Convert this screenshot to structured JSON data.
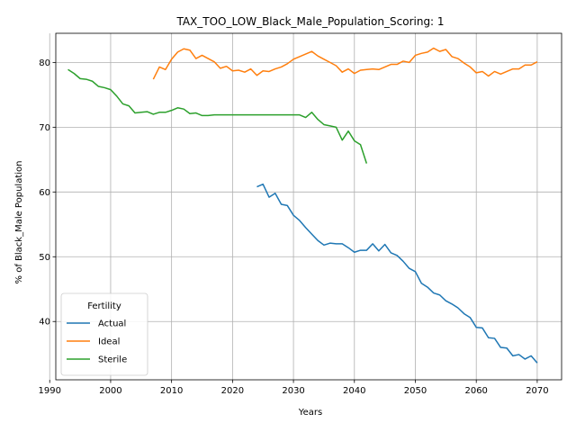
{
  "chart_data": {
    "type": "line",
    "title": "TAX_TOO_LOW_Black_Male_Population_Scoring: 1",
    "xlabel": "Years",
    "ylabel": "% of Black_Male Population",
    "xlim": [
      1991,
      2074
    ],
    "ylim": [
      31,
      84.5
    ],
    "xticks": [
      1990,
      2000,
      2010,
      2020,
      2030,
      2040,
      2050,
      2060,
      2070
    ],
    "yticks": [
      40,
      50,
      60,
      70,
      80
    ],
    "grid": true,
    "legend": {
      "title": "Fertility",
      "placement": "lower-left"
    },
    "series": [
      {
        "name": "Actual",
        "color": "#1f77b4",
        "x": [
          2024,
          2025,
          2026,
          2027,
          2028,
          2029,
          2030,
          2031,
          2032,
          2033,
          2034,
          2035,
          2036,
          2037,
          2038,
          2039,
          2040,
          2041,
          2042,
          2043,
          2044,
          2045,
          2046,
          2047,
          2048,
          2049,
          2050,
          2051,
          2052,
          2053,
          2054,
          2055,
          2056,
          2057,
          2058,
          2059,
          2060,
          2061,
          2062,
          2063,
          2064,
          2065,
          2066,
          2067,
          2068,
          2069,
          2070
        ],
        "y": [
          60.8,
          61.2,
          59.2,
          59.8,
          58.1,
          57.9,
          56.4,
          55.6,
          54.5,
          53.5,
          52.5,
          51.8,
          52.1,
          52.0,
          52.0,
          51.4,
          50.7,
          51.0,
          51.0,
          52.0,
          50.9,
          51.9,
          50.6,
          50.2,
          49.3,
          48.2,
          47.7,
          45.9,
          45.3,
          44.4,
          44.1,
          43.2,
          42.7,
          42.1,
          41.2,
          40.6,
          39.1,
          39.0,
          37.5,
          37.4,
          36.0,
          35.9,
          34.7,
          34.9,
          34.2,
          34.7,
          33.6
        ]
      },
      {
        "name": "Ideal",
        "color": "#ff7f0e",
        "x": [
          2007,
          2008,
          2009,
          2010,
          2011,
          2012,
          2013,
          2014,
          2015,
          2016,
          2017,
          2018,
          2019,
          2020,
          2021,
          2022,
          2023,
          2024,
          2025,
          2026,
          2027,
          2028,
          2029,
          2030,
          2031,
          2032,
          2033,
          2034,
          2035,
          2036,
          2037,
          2038,
          2039,
          2040,
          2041,
          2042,
          2043,
          2044,
          2045,
          2046,
          2047,
          2048,
          2049,
          2050,
          2051,
          2052,
          2053,
          2054,
          2055,
          2056,
          2057,
          2058,
          2059,
          2060,
          2061,
          2062,
          2063,
          2064,
          2065,
          2066,
          2067,
          2068,
          2069,
          2070
        ],
        "y": [
          77.4,
          79.3,
          78.9,
          80.5,
          81.6,
          82.1,
          81.9,
          80.6,
          81.1,
          80.6,
          80.1,
          79.1,
          79.4,
          78.7,
          78.8,
          78.5,
          79.0,
          78.0,
          78.7,
          78.6,
          79.0,
          79.3,
          79.8,
          80.5,
          80.9,
          81.3,
          81.7,
          81.0,
          80.5,
          80.0,
          79.5,
          78.5,
          79.0,
          78.3,
          78.8,
          78.9,
          79.0,
          78.9,
          79.3,
          79.7,
          79.7,
          80.2,
          80.0,
          81.1,
          81.4,
          81.6,
          82.2,
          81.7,
          82.0,
          80.9,
          80.6,
          79.9,
          79.3,
          78.4,
          78.6,
          77.9,
          78.6,
          78.2,
          78.6,
          79.0,
          79.0,
          79.6,
          79.6,
          80.1
        ]
      },
      {
        "name": "Sterile",
        "color": "#2ca02c",
        "x": [
          1993,
          1994,
          1995,
          1996,
          1997,
          1998,
          1999,
          2000,
          2001,
          2002,
          2003,
          2004,
          2005,
          2006,
          2007,
          2008,
          2009,
          2010,
          2011,
          2012,
          2013,
          2014,
          2015,
          2016,
          2017,
          2018,
          2019,
          2020,
          2021,
          2022,
          2023,
          2024,
          2025,
          2026,
          2027,
          2028,
          2029,
          2030,
          2031,
          2032,
          2033,
          2034,
          2035,
          2036,
          2037,
          2038,
          2039,
          2040,
          2041,
          2042
        ],
        "y": [
          78.9,
          78.3,
          77.5,
          77.4,
          77.1,
          76.3,
          76.1,
          75.8,
          74.8,
          73.6,
          73.3,
          72.2,
          72.3,
          72.4,
          72.0,
          72.3,
          72.3,
          72.6,
          73.0,
          72.8,
          72.1,
          72.2,
          71.8,
          71.8,
          71.9,
          71.9,
          71.9,
          71.9,
          71.9,
          71.9,
          71.9,
          71.9,
          71.9,
          71.9,
          71.9,
          71.9,
          71.9,
          71.9,
          71.9,
          71.5,
          72.3,
          71.2,
          70.4,
          70.2,
          70.0,
          68.0,
          69.4,
          67.9,
          67.3,
          64.4
        ]
      }
    ]
  }
}
